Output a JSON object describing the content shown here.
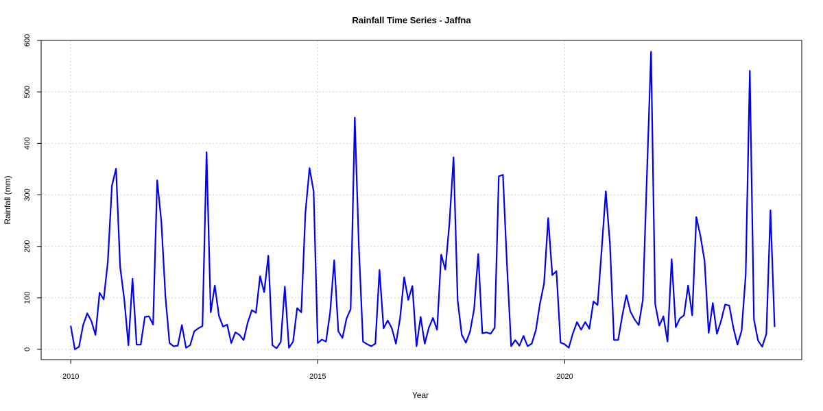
{
  "chart_data": {
    "type": "line",
    "title": "Rainfall Time Series - Jaffna",
    "xlabel": "Year",
    "ylabel": "Rainfall (mm)",
    "xlim": [
      2009.4,
      2024.8
    ],
    "ylim": [
      -20,
      600
    ],
    "x_ticks": [
      2010,
      2015,
      2020
    ],
    "y_ticks": [
      0,
      100,
      200,
      300,
      400,
      500,
      600
    ],
    "grid": true,
    "series": [
      {
        "color": "#0000ee",
        "x_start": 2010.0,
        "step": 0.08333,
        "values": [
          45,
          0,
          5,
          47,
          70,
          55,
          28,
          110,
          97,
          170,
          318,
          351,
          160,
          97,
          8,
          137,
          9,
          9,
          63,
          64,
          48,
          328,
          249,
          103,
          12,
          6,
          7,
          47,
          3,
          8,
          35,
          41,
          45,
          383,
          72,
          124,
          65,
          44,
          48,
          12,
          33,
          28,
          18,
          52,
          76,
          71,
          142,
          111,
          182,
          8,
          2,
          14,
          122,
          3,
          15,
          80,
          72,
          265,
          352,
          307,
          12,
          19,
          15,
          71,
          173,
          35,
          22,
          60,
          78,
          450,
          198,
          15,
          10,
          6,
          11,
          154,
          41,
          56,
          41,
          11,
          60,
          140,
          96,
          123,
          6,
          63,
          11,
          42,
          61,
          38,
          184,
          155,
          245,
          373,
          95,
          28,
          13,
          34,
          78,
          185,
          31,
          33,
          30,
          42,
          336,
          339,
          162,
          6,
          18,
          7,
          26,
          6,
          11,
          37,
          89,
          128,
          255,
          144,
          152,
          13,
          10,
          3,
          31,
          53,
          38,
          53,
          40,
          93,
          86,
          194,
          307,
          206,
          18,
          18,
          65,
          105,
          73,
          58,
          47,
          96,
          340,
          578,
          88,
          46,
          64,
          15,
          175,
          43,
          60,
          66,
          124,
          66,
          257,
          220,
          172,
          32,
          90,
          30,
          55,
          87,
          85,
          42,
          9,
          36,
          145,
          541,
          58,
          17,
          5,
          30,
          270,
          44
        ]
      }
    ]
  }
}
